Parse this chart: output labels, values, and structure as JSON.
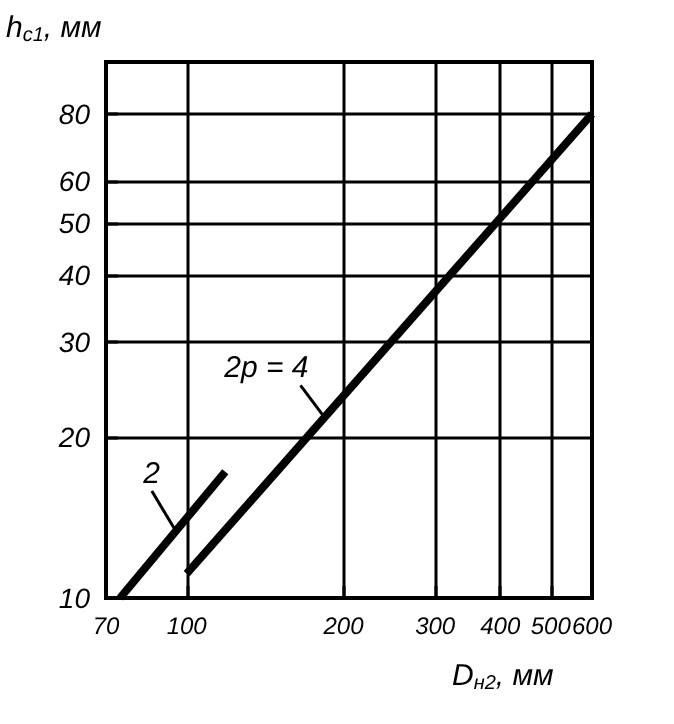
{
  "chart_data": {
    "type": "line",
    "xlabel": "D$_{н2}$, мм",
    "ylabel": "h$_{с1}$, мм",
    "log": "xy",
    "xlim": [
      70,
      600
    ],
    "ylim": [
      10,
      100
    ],
    "xticks": [
      70,
      100,
      200,
      300,
      400,
      500,
      600
    ],
    "yticks": [
      10,
      20,
      30,
      40,
      50,
      60,
      80
    ],
    "grid": true,
    "legend": false,
    "marker": "none",
    "line_style": "solid",
    "series": [
      {
        "name": "2",
        "color": "#000000",
        "x": [
          74.5,
          118.6
        ],
        "values": [
          10,
          17.2
        ]
      },
      {
        "name": "2p = 4",
        "color": "#000000",
        "x": [
          100,
          600
        ],
        "values": [
          11.1,
          80
        ]
      }
    ]
  }
}
